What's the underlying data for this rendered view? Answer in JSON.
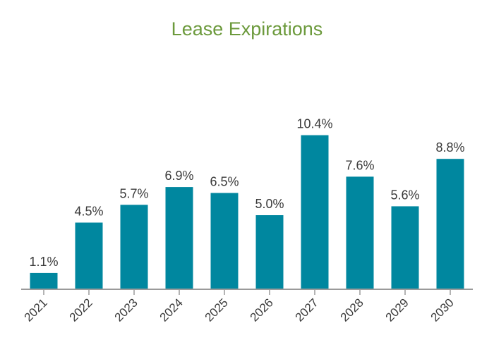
{
  "chart_data": {
    "type": "bar",
    "title": "Lease Expirations",
    "categories": [
      "2021",
      "2022",
      "2023",
      "2024",
      "2025",
      "2026",
      "2027",
      "2028",
      "2029",
      "2030"
    ],
    "values": [
      1.1,
      4.5,
      5.7,
      6.9,
      6.5,
      5.0,
      10.4,
      7.6,
      5.6,
      8.8
    ],
    "data_labels": [
      "1.1%",
      "4.5%",
      "5.7%",
      "6.9%",
      "6.5%",
      "5.0%",
      "10.4%",
      "7.6%",
      "5.6%",
      "8.8%"
    ],
    "xlabel": "",
    "ylabel": "",
    "ylim": [
      0,
      11
    ],
    "grid": false,
    "legend": "none",
    "colors": {
      "bar": "#00879f",
      "title": "#6c9a3c",
      "axis": "#9a9a9a",
      "text": "#3a3a3a"
    }
  }
}
